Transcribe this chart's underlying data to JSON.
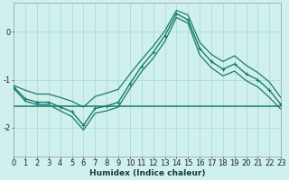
{
  "xlabel": "Humidex (Indice chaleur)",
  "x": [
    0,
    1,
    2,
    3,
    4,
    5,
    6,
    7,
    8,
    9,
    10,
    11,
    12,
    13,
    14,
    15,
    16,
    17,
    18,
    19,
    20,
    21,
    22,
    23
  ],
  "y_main": [
    -1.15,
    -1.4,
    -1.47,
    -1.47,
    -1.57,
    -1.67,
    -1.95,
    -1.6,
    -1.55,
    -1.47,
    -1.08,
    -0.72,
    -0.43,
    -0.08,
    0.38,
    0.25,
    -0.35,
    -0.62,
    -0.78,
    -0.67,
    -0.88,
    -1.0,
    -1.22,
    -1.52
  ],
  "y_upper": [
    -1.12,
    -1.22,
    -1.3,
    -1.3,
    -1.37,
    -1.45,
    -1.57,
    -1.35,
    -1.28,
    -1.2,
    -0.88,
    -0.58,
    -0.3,
    0.02,
    0.45,
    0.35,
    -0.22,
    -0.47,
    -0.62,
    -0.5,
    -0.7,
    -0.85,
    -1.05,
    -1.38
  ],
  "y_lower": [
    -1.18,
    -1.45,
    -1.52,
    -1.52,
    -1.65,
    -1.77,
    -2.05,
    -1.7,
    -1.65,
    -1.57,
    -1.18,
    -0.83,
    -0.55,
    -0.2,
    0.3,
    0.18,
    -0.48,
    -0.75,
    -0.92,
    -0.82,
    -1.02,
    -1.15,
    -1.37,
    -1.62
  ],
  "y_flat": [
    -1.55,
    -1.55,
    -1.55,
    -1.55,
    -1.55,
    -1.55,
    -1.55,
    -1.55,
    -1.55,
    -1.55,
    -1.55,
    -1.55,
    -1.55,
    -1.55,
    -1.55,
    -1.55,
    -1.55,
    -1.55,
    -1.55,
    -1.55,
    -1.55,
    -1.55,
    -1.55,
    -1.55
  ],
  "line_color": "#1a7a6e",
  "bg_color": "#cff0ec",
  "grid_color": "#a8d8d0",
  "ylim": [
    -2.6,
    0.6
  ],
  "yticks": [
    -2,
    -1,
    0
  ],
  "xlim": [
    0,
    23
  ]
}
